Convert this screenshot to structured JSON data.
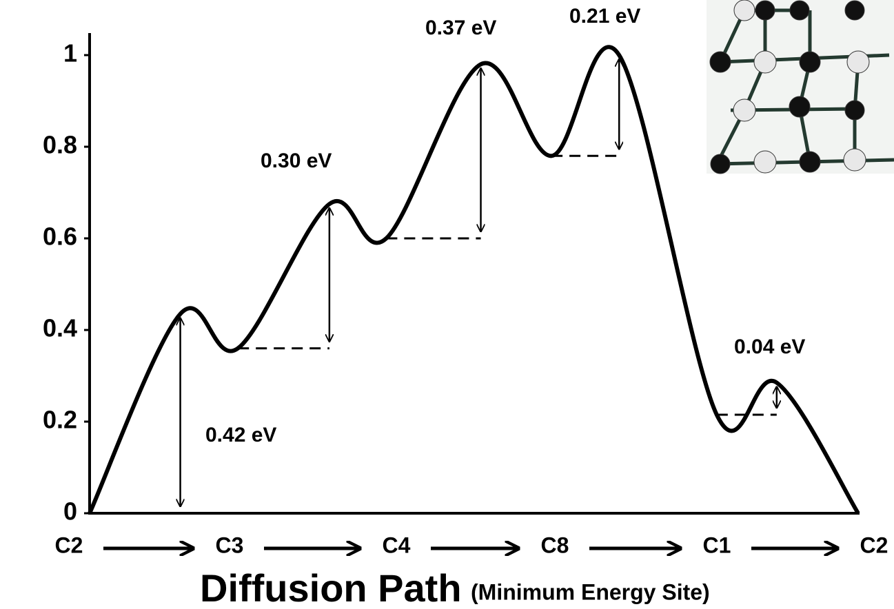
{
  "chart_data": {
    "type": "line",
    "x": [
      0,
      0.118,
      0.193,
      0.312,
      0.386,
      0.509,
      0.601,
      0.689,
      0.816,
      0.894,
      1
    ],
    "values": [
      0,
      0.435,
      0.36,
      0.675,
      0.6,
      0.98,
      0.78,
      1.0,
      0.215,
      0.285,
      0
    ],
    "color": "#000000",
    "xlim": [
      0,
      1
    ],
    "ylim": [
      0,
      1
    ],
    "yticks": [
      0,
      0.2,
      0.4,
      0.6,
      0.8,
      1
    ],
    "barriers": [
      "0.42 eV",
      "0.30 eV",
      "0.37 eV",
      "0.21 eV",
      "0.04 eV"
    ],
    "path_labels": [
      "C2",
      "C3",
      "C4",
      "C8",
      "C1",
      "C2"
    ],
    "xlabel": "Diffusion Path",
    "xlabel_note": "(Minimum Energy Site)"
  }
}
